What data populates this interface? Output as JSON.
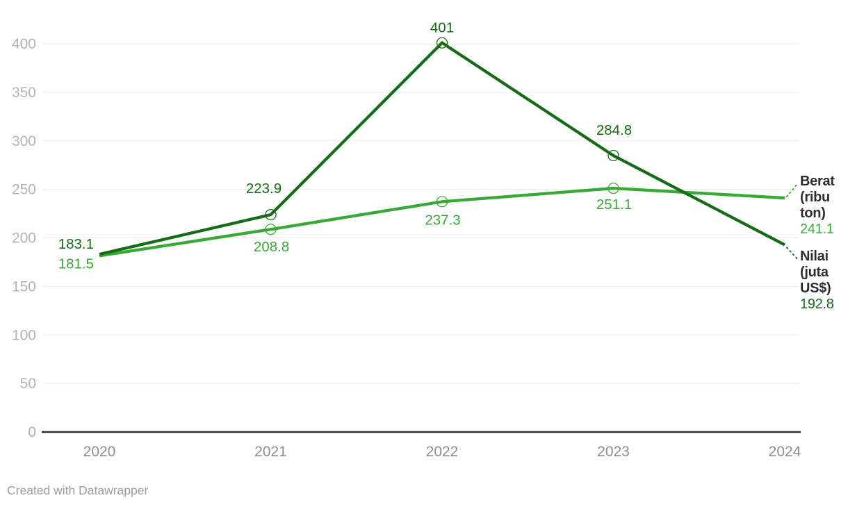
{
  "chart_data": {
    "type": "line",
    "x_labels": [
      "2020",
      "2021",
      "2022",
      "2023",
      "2024"
    ],
    "series": [
      {
        "name": "Berat (ribu ton)",
        "values": [
          181.5,
          208.8,
          237.3,
          251.1,
          241.1
        ],
        "value_labels": [
          "181.5",
          "208.8",
          "237.3",
          "251.1",
          "241.1"
        ],
        "color": "#39a935"
      },
      {
        "name": "Nilai (juta US$)",
        "values": [
          183.1,
          223.9,
          401,
          284.8,
          192.8
        ],
        "value_labels": [
          "183.1",
          "223.9",
          "401",
          "284.8",
          "192.8"
        ],
        "color": "#166b16"
      }
    ],
    "ylim": [
      0,
      400
    ],
    "yticks": [
      0,
      50,
      100,
      150,
      200,
      250,
      300,
      350,
      400
    ],
    "grid": true,
    "legend_position": "right",
    "title": "",
    "xlabel": "",
    "ylabel": ""
  },
  "legend": {
    "berat": {
      "label": "Berat (ribu ton)",
      "value": "241.1",
      "color": "#39a935"
    },
    "nilai": {
      "label": "Nilai (juta US$)",
      "value": "192.8",
      "color": "#166b16"
    }
  },
  "footer": {
    "credit": "Created with Datawrapper"
  },
  "colors": {
    "background": "#ffffff",
    "gridline": "#eaeaea",
    "axis_baseline": "#2d2d2d",
    "y_tick_text": "#b3b3b3",
    "x_tick_text": "#8d8d8d",
    "footer_text": "#9c9c9c",
    "legend_name_text": "#2e2e2e"
  }
}
